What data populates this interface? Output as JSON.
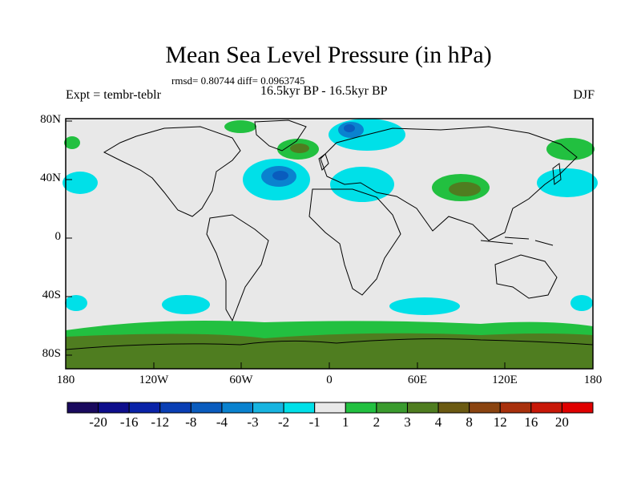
{
  "title": "Mean Sea Level Pressure (in hPa)",
  "stats": "rmsd= 0.80744 diff= 0.0963745",
  "experiment": "Expt = tembr-teblr",
  "period": "16.5kyr BP - 16.5kyr BP",
  "season": "DJF",
  "lat_ticks": [
    "80N",
    "40N",
    "0",
    "40S",
    "80S"
  ],
  "lon_ticks": [
    "180",
    "120W",
    "60W",
    "0",
    "60E",
    "120E",
    "180"
  ],
  "colorbar": {
    "labels": [
      "-20",
      "-16",
      "-12",
      "-8",
      "-4",
      "-3",
      "-2",
      "-1",
      "1",
      "2",
      "3",
      "4",
      "8",
      "12",
      "16",
      "20"
    ],
    "colors": [
      "#1a0a5e",
      "#0e0e8c",
      "#0a23a8",
      "#0a3fb4",
      "#0a5cbe",
      "#0a82cf",
      "#18b4e0",
      "#00e0e8",
      "#e8e8e8",
      "#22c040",
      "#3a9b2e",
      "#4f7d20",
      "#6b5a12",
      "#8a4410",
      "#a8300c",
      "#c81808",
      "#e00000"
    ]
  },
  "map": {
    "background_color": "#e8e8e8",
    "negative_color": "#00e0e8",
    "strong_negative_color": "#0a5cbe",
    "positive_color": "#22c040",
    "strong_positive_color": "#4f7d20"
  }
}
